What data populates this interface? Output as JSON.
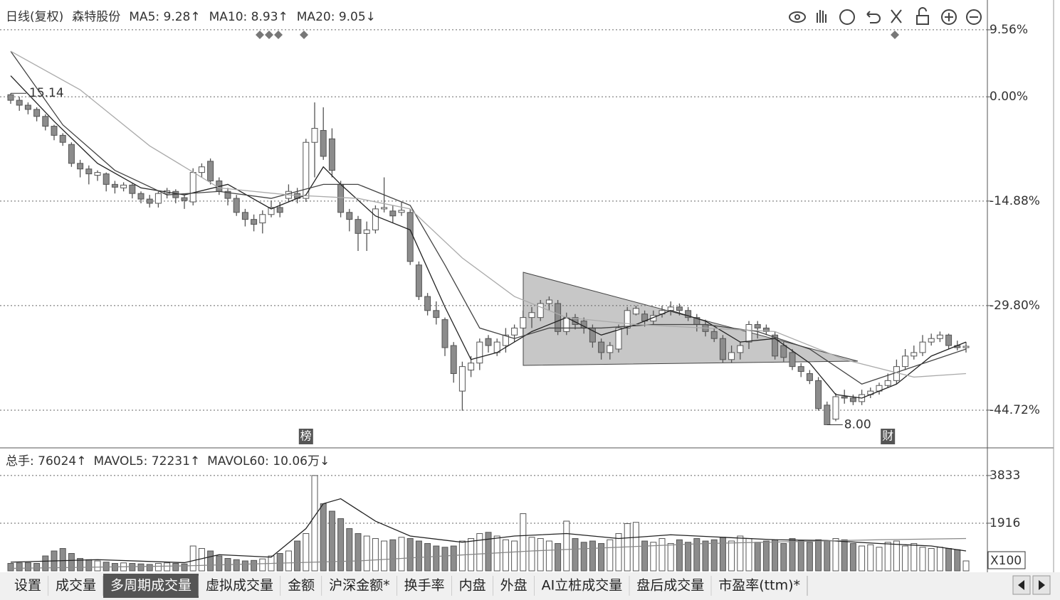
{
  "chart_data": {
    "type": "candlestick",
    "header": [
      "日线(复权)",
      "森特股份",
      "MA5: 9.28↑",
      "MA10: 8.93↑",
      "MA20: 9.05↓"
    ],
    "ylim": [
      -49.9,
      12.8
    ],
    "yticks": [
      {
        "value": 9.56,
        "label": "9.56%"
      },
      {
        "value": 0,
        "label": "0.00%"
      },
      {
        "value": -14.88,
        "label": "-14.88%"
      },
      {
        "value": -29.8,
        "label": "-29.80%"
      },
      {
        "value": -44.72,
        "label": "-44.72%"
      }
    ],
    "ohlc": [
      [
        0.3,
        -0.5,
        0.5,
        -1.0
      ],
      [
        -0.5,
        -1.2,
        0,
        -2
      ],
      [
        -1.2,
        -1.8,
        -0.8,
        -2.5
      ],
      [
        -1.8,
        -2.8,
        -1.5,
        -3.5
      ],
      [
        -2.8,
        -4.2,
        -2.5,
        -4.8
      ],
      [
        -4.2,
        -5.5,
        -4,
        -6.2
      ],
      [
        -5.5,
        -6.5,
        -5.2,
        -7
      ],
      [
        -6.8,
        -9.5,
        -6.5,
        -10
      ],
      [
        -9.5,
        -10.3,
        -9,
        -11.5
      ],
      [
        -10.3,
        -11,
        -9.8,
        -12.5
      ],
      [
        -11.2,
        -10.8,
        -10.5,
        -12
      ],
      [
        -11,
        -12.5,
        -10.8,
        -13.5
      ],
      [
        -12.5,
        -12.9,
        -12,
        -13.8
      ],
      [
        -13,
        -12.6,
        -12.2,
        -13.5
      ],
      [
        -12.6,
        -13.8,
        -12.4,
        -14.5
      ],
      [
        -13.8,
        -14.6,
        -13.5,
        -15.2
      ],
      [
        -14.6,
        -15.2,
        -14,
        -15.8
      ],
      [
        -15.2,
        -13.8,
        -13.5,
        -15.8
      ],
      [
        -13.8,
        -13.4,
        -13,
        -14.5
      ],
      [
        -13.5,
        -14.4,
        -13.2,
        -15.2
      ],
      [
        -14.4,
        -14.8,
        -14,
        -16
      ],
      [
        -15,
        -10.8,
        -10.2,
        -15.5
      ],
      [
        -10.8,
        -10,
        -9.5,
        -11.5
      ],
      [
        -9.2,
        -12,
        -8.8,
        -12.5
      ],
      [
        -12,
        -13.5,
        -11.5,
        -14
      ],
      [
        -13.5,
        -14.5,
        -13,
        -15.5
      ],
      [
        -14.5,
        -16.5,
        -14,
        -17
      ],
      [
        -16.5,
        -17.5,
        -16,
        -18.5
      ],
      [
        -17.5,
        -18.2,
        -16.8,
        -19.2
      ],
      [
        -18,
        -16.8,
        -16.2,
        -19.5
      ],
      [
        -16.8,
        -15.8,
        -14.8,
        -17.2
      ],
      [
        -15.8,
        -16.5,
        -15,
        -17.2
      ],
      [
        -14.5,
        -13.5,
        -12.5,
        -15
      ],
      [
        -13.8,
        -14.5,
        -13,
        -15.2
      ],
      [
        -14.5,
        -6.5,
        -6,
        -15
      ],
      [
        -6.5,
        -4.5,
        -0.8,
        -11.5
      ],
      [
        -4.8,
        -8.5,
        -1.5,
        -9
      ],
      [
        -6,
        -10.5,
        -4.5,
        -11.5
      ],
      [
        -12.5,
        -16.5,
        -12,
        -17.2
      ],
      [
        -16.5,
        -17.5,
        -16,
        -19.2
      ],
      [
        -17.5,
        -19.5,
        -17,
        -22
      ],
      [
        -19.5,
        -19,
        -17.8,
        -22
      ],
      [
        -19,
        -16,
        -15.5,
        -19.5
      ],
      [
        -16,
        -15.8,
        -11.5,
        -16.5
      ],
      [
        -16.3,
        -17,
        -15.5,
        -18
      ],
      [
        -16.5,
        -16.2,
        -15,
        -17
      ],
      [
        -16.5,
        -23.5,
        -16,
        -24
      ],
      [
        -24,
        -28.5,
        -23.5,
        -29
      ],
      [
        -28.5,
        -30.5,
        -28,
        -31.2
      ],
      [
        -30.5,
        -31.5,
        -29.2,
        -32.5
      ],
      [
        -31.8,
        -35.8,
        -31.5,
        -37
      ],
      [
        -35.5,
        -39.5,
        -35,
        -40.8
      ],
      [
        -42,
        -38.5,
        -37.8,
        -44.8
      ],
      [
        -39,
        -38,
        -37,
        -40
      ],
      [
        -38,
        -35,
        -34.5,
        -39
      ],
      [
        -34.5,
        -35.5,
        -34,
        -36.5
      ],
      [
        -36.5,
        -35,
        -34.5,
        -37
      ],
      [
        -35.5,
        -34,
        -33,
        -36.5
      ],
      [
        -34,
        -33,
        -32.5,
        -35
      ],
      [
        -33,
        -31.5,
        -30.5,
        -34
      ],
      [
        -31.5,
        -30.8,
        -30,
        -33
      ],
      [
        -31.5,
        -29.5,
        -29,
        -32
      ],
      [
        -29.5,
        -29,
        -28.5,
        -30.5
      ],
      [
        -29.5,
        -33.5,
        -29,
        -34
      ],
      [
        -33.5,
        -31.5,
        -30.8,
        -34
      ],
      [
        -31.5,
        -32.5,
        -31,
        -33.2
      ],
      [
        -32,
        -33,
        -31.5,
        -33.8
      ],
      [
        -33,
        -35,
        -32.5,
        -35.8
      ],
      [
        -35,
        -36.5,
        -34.5,
        -37.5
      ],
      [
        -36.5,
        -35.5,
        -35,
        -37.5
      ],
      [
        -36,
        -33,
        -32.5,
        -36.5
      ],
      [
        -33,
        -30.5,
        -30,
        -34
      ],
      [
        -31,
        -30.2,
        -29.8,
        -31.2
      ],
      [
        -31,
        -32,
        -30.5,
        -32.8
      ],
      [
        -32,
        -31.2,
        -30.5,
        -32.5
      ],
      [
        -31,
        -30.5,
        -29.8,
        -31.5
      ],
      [
        -30.5,
        -30,
        -29.2,
        -31.2
      ],
      [
        -30,
        -30.5,
        -29.5,
        -31.2
      ],
      [
        -30.5,
        -31.5,
        -30,
        -32
      ],
      [
        -31.5,
        -32.5,
        -31,
        -33.5
      ],
      [
        -32.5,
        -33.5,
        -31.8,
        -34.2
      ],
      [
        -33.5,
        -34.5,
        -33,
        -35
      ],
      [
        -34.5,
        -37.5,
        -34,
        -38
      ],
      [
        -37.5,
        -36.5,
        -35.5,
        -38
      ],
      [
        -36.5,
        -35.5,
        -35,
        -37.5
      ],
      [
        -35,
        -32.5,
        -32,
        -36
      ],
      [
        -32.5,
        -33,
        -32,
        -34.5
      ],
      [
        -33,
        -33.5,
        -32.5,
        -34
      ],
      [
        -34,
        -37,
        -33.5,
        -37.5
      ],
      [
        -35.5,
        -37.2,
        -35,
        -37.8
      ],
      [
        -36.5,
        -38.5,
        -36,
        -39
      ],
      [
        -38.5,
        -39.2,
        -38,
        -40
      ],
      [
        -39.5,
        -40.5,
        -39,
        -41
      ],
      [
        -40.5,
        -44.5,
        -40,
        -44.8
      ],
      [
        -44,
        -46.8,
        -43.5,
        -46.8
      ],
      [
        -46,
        -42.8,
        -42.3,
        -46.3
      ],
      [
        -42.8,
        -43,
        -41.8,
        -43.8
      ],
      [
        -43,
        -43.5,
        -42.5,
        -44
      ],
      [
        -43.5,
        -42.5,
        -41.8,
        -44
      ],
      [
        -42.5,
        -42,
        -41.5,
        -43
      ],
      [
        -42,
        -41.2,
        -40.8,
        -42.5
      ],
      [
        -41.2,
        -40.5,
        -39.5,
        -41.5
      ],
      [
        -40.5,
        -38.5,
        -37.5,
        -41
      ],
      [
        -38.5,
        -37,
        -36,
        -39
      ],
      [
        -37,
        -36.5,
        -35.5,
        -37.5
      ],
      [
        -36.5,
        -35,
        -34,
        -37
      ],
      [
        -35,
        -34.5,
        -33.8,
        -35.5
      ],
      [
        -34.5,
        -34,
        -33.5,
        -35
      ],
      [
        -34,
        -35.5,
        -33.8,
        -36
      ],
      [
        -35.5,
        -35.8,
        -34.8,
        -36.2
      ],
      [
        -35.8,
        -35.6,
        -35,
        -36.5
      ]
    ],
    "lines": [
      {
        "name": "MA5",
        "color": "#222222",
        "x": [
          0,
          5,
          10,
          15,
          20,
          25,
          30,
          34,
          36,
          38,
          42,
          46,
          50,
          53,
          56,
          60,
          64,
          68,
          72,
          76,
          80,
          84,
          88,
          92,
          95,
          98,
          102,
          106,
          110
        ],
        "values": [
          3,
          -3.5,
          -9.5,
          -13,
          -14,
          -12.5,
          -16,
          -14,
          -10,
          -12.5,
          -17,
          -19,
          -30,
          -37.5,
          -36.5,
          -33.5,
          -31.5,
          -34,
          -32.5,
          -30.5,
          -32,
          -35,
          -34.5,
          -38,
          -42.5,
          -43,
          -41,
          -37,
          -35
        ]
      },
      {
        "name": "MA10",
        "color": "#444444",
        "x": [
          0,
          6,
          12,
          18,
          24,
          30,
          36,
          40,
          46,
          50,
          54,
          58,
          62,
          68,
          74,
          80,
          86,
          92,
          98,
          104,
          110
        ],
        "values": [
          6.5,
          -4,
          -10.5,
          -14,
          -13.5,
          -14.5,
          -12.5,
          -12.5,
          -15.5,
          -24,
          -33,
          -34.5,
          -33,
          -33,
          -32.5,
          -32.5,
          -33.5,
          -36,
          -41,
          -38.5,
          -36
        ]
      },
      {
        "name": "MA20",
        "color": "#aaaaaa",
        "x": [
          0,
          8,
          16,
          24,
          32,
          40,
          46,
          52,
          58,
          64,
          72,
          80,
          88,
          96,
          104,
          110
        ],
        "values": [
          6.5,
          1,
          -7,
          -13,
          -14,
          -14.5,
          -16,
          -23,
          -28.5,
          -31.5,
          -32.5,
          -33,
          -33.5,
          -37.5,
          -40,
          -39.5
        ]
      }
    ],
    "high_label": "15.14",
    "low_label": "8.00",
    "high_index": 0,
    "low_index": 94,
    "markers": [
      {
        "index": 34,
        "label": "榜"
      },
      {
        "index": 101,
        "label": "财"
      }
    ],
    "volume": {
      "header": [
        "总手: 76024↑",
        "MAVOL5: 72231↑",
        "MAVOL60: 10.06万↓"
      ],
      "unit": "X100",
      "ylim": [
        0,
        4660
      ],
      "yticks": [
        1916,
        3833
      ],
      "values": [
        300,
        320,
        330,
        300,
        600,
        800,
        900,
        700,
        500,
        450,
        400,
        350,
        300,
        320,
        300,
        280,
        260,
        300,
        320,
        300,
        280,
        1000,
        900,
        800,
        600,
        500,
        450,
        400,
        420,
        480,
        600,
        700,
        800,
        1200,
        1500,
        3833,
        2700,
        2400,
        2100,
        1700,
        1500,
        1400,
        1300,
        1200,
        1250,
        1350,
        1300,
        1200,
        1100,
        1000,
        950,
        1000,
        1200,
        1300,
        1500,
        1550,
        1400,
        1250,
        1200,
        2300,
        1350,
        1300,
        1200,
        1100,
        2000,
        1300,
        1150,
        1200,
        1100,
        1250,
        1500,
        1900,
        1950,
        1200,
        1150,
        1300,
        1100,
        1250,
        1150,
        1300,
        1200,
        1250,
        1350,
        1200,
        1400,
        1300,
        1150,
        1200,
        1250,
        1100,
        1300,
        1200,
        1150,
        1250,
        1200,
        1300,
        1250,
        1100,
        1000,
        1050,
        950,
        1150,
        1200,
        1000,
        1100,
        950,
        900,
        950,
        900,
        850,
        400
      ],
      "lines": [
        {
          "name": "MAVOL5",
          "color": "#222222",
          "x": [
            0,
            10,
            20,
            24,
            30,
            34,
            36,
            38,
            42,
            46,
            52,
            58,
            64,
            70,
            76,
            82,
            88,
            94,
            100,
            106,
            110
          ],
          "values": [
            350,
            450,
            330,
            650,
            550,
            1700,
            2700,
            2900,
            2000,
            1400,
            1150,
            1400,
            1500,
            1300,
            1450,
            1350,
            1250,
            1220,
            1100,
            1000,
            800
          ]
        },
        {
          "name": "MAVOL60",
          "color": "#888888",
          "x": [
            0,
            20,
            40,
            60,
            80,
            100,
            110
          ],
          "values": [
            100,
            200,
            400,
            800,
            1100,
            1250,
            1300
          ]
        }
      ]
    },
    "tabs": [
      "设置",
      "成交量",
      "多周期成交量",
      "虚拟成交量",
      "金额",
      "沪深金额*",
      "换手率",
      "内盘",
      "外盘",
      "AI立桩成交量",
      "盘后成交量",
      "市盈率(ttm)*"
    ],
    "selected_tab": 2
  }
}
